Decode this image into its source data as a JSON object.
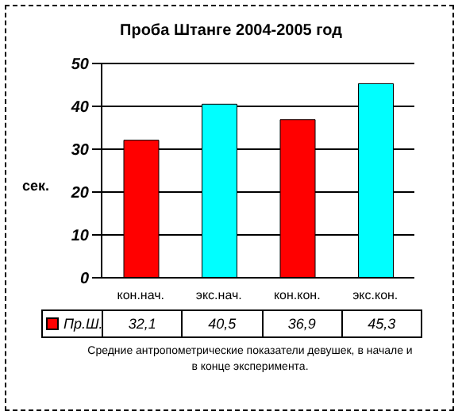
{
  "chart_data": {
    "type": "bar",
    "title": "Проба Штанге 2004-2005 год",
    "ylabel": "сек.",
    "categories": [
      "кон.нач.",
      "экс.нач.",
      "кон.кон.",
      "экс.кон."
    ],
    "series": [
      {
        "name": "Пр.Ш.",
        "color": "#ff0000",
        "colors": [
          "#ff0000",
          "#00ffff",
          "#ff0000",
          "#00ffff"
        ],
        "values": [
          32.1,
          40.5,
          36.9,
          45.3
        ],
        "value_labels": [
          "32,1",
          "40,5",
          "36,9",
          "45,3"
        ]
      }
    ],
    "ylim": [
      0,
      50
    ],
    "yticks": [
      0,
      10,
      20,
      30,
      40,
      50
    ],
    "grid": "y",
    "legend": "bottom left",
    "annotations": [
      "Средние антропометрические показатели девушек, в начале и в конце эксперимента."
    ]
  }
}
